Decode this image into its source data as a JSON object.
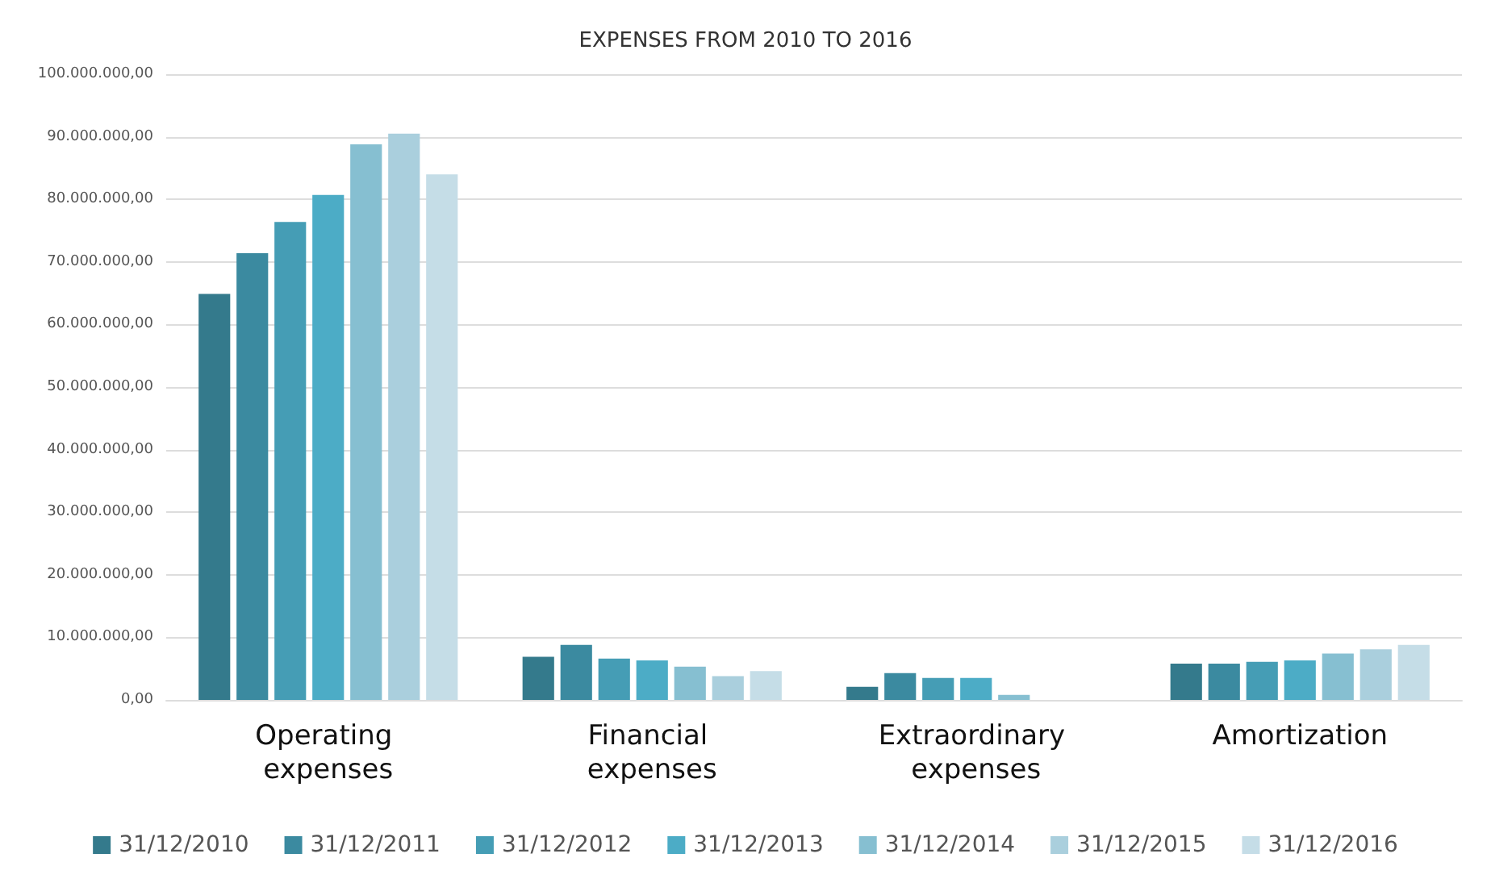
{
  "chart_data": {
    "type": "bar",
    "title": "EXPENSES FROM 2010 TO 2016",
    "categories": [
      "Operating expenses",
      "Financial expenses",
      "Extraordinary expenses",
      "Amortization"
    ],
    "series": [
      {
        "name": "31/12/2010",
        "color": "#347a8c",
        "values": [
          64900000,
          6900000,
          2100000,
          5800000
        ]
      },
      {
        "name": "31/12/2011",
        "color": "#3b8aa0",
        "values": [
          71400000,
          8800000,
          4300000,
          5800000
        ]
      },
      {
        "name": "31/12/2012",
        "color": "#459db5",
        "values": [
          76400000,
          6600000,
          3500000,
          6100000
        ]
      },
      {
        "name": "31/12/2013",
        "color": "#4cacc6",
        "values": [
          80700000,
          6300000,
          3500000,
          6300000
        ]
      },
      {
        "name": "31/12/2014",
        "color": "#86bfd1",
        "values": [
          88800000,
          5300000,
          800000,
          7400000
        ]
      },
      {
        "name": "31/12/2015",
        "color": "#aacfdd",
        "values": [
          90500000,
          3800000,
          null,
          8100000
        ]
      },
      {
        "name": "31/12/2016",
        "color": "#c5dde7",
        "values": [
          84000000,
          4600000,
          null,
          8800000
        ]
      }
    ],
    "ylim": [
      0,
      100000000
    ],
    "yticks": [
      {
        "value": 0,
        "label": "0,00"
      },
      {
        "value": 10000000,
        "label": "10.000.000,00"
      },
      {
        "value": 20000000,
        "label": "20.000.000,00"
      },
      {
        "value": 30000000,
        "label": "30.000.000,00"
      },
      {
        "value": 40000000,
        "label": "40.000.000,00"
      },
      {
        "value": 50000000,
        "label": "50.000.000,00"
      },
      {
        "value": 60000000,
        "label": "60.000.000,00"
      },
      {
        "value": 70000000,
        "label": "70.000.000,00"
      },
      {
        "value": 80000000,
        "label": "80.000.000,00"
      },
      {
        "value": 90000000,
        "label": "90.000.000,00"
      },
      {
        "value": 100000000,
        "label": "100.000.000,00"
      }
    ],
    "grid": "y",
    "legend": "bottom"
  }
}
